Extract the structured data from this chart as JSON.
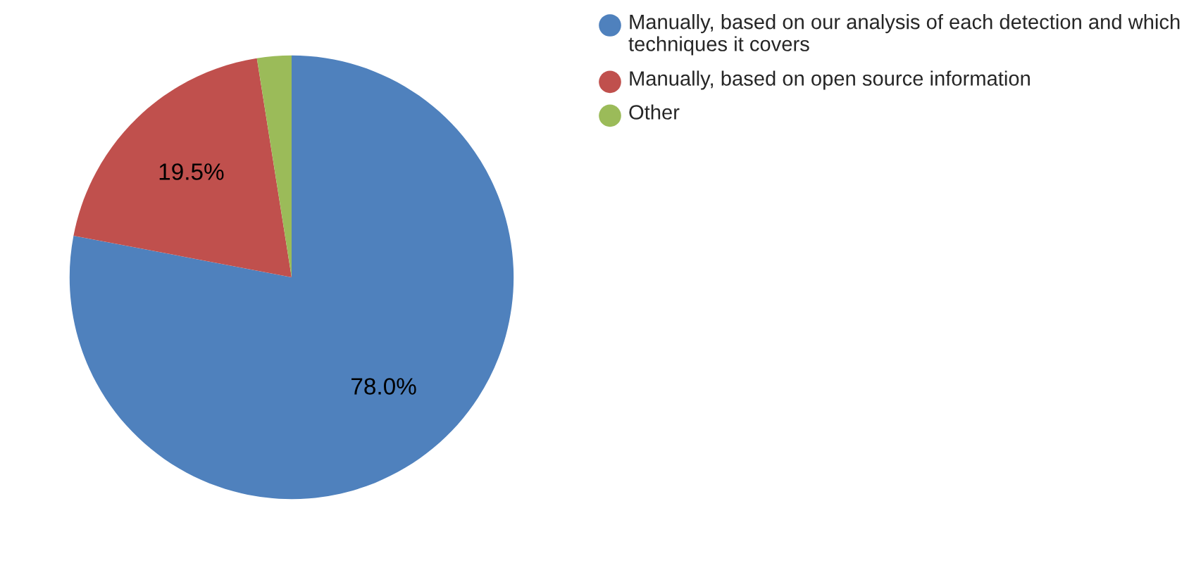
{
  "chart_data": {
    "type": "pie",
    "categories": [
      "Manually, based on our analysis of each detection and which techniques it covers",
      "Manually, based on open source information",
      "Other"
    ],
    "values": [
      78.0,
      19.5,
      2.5
    ],
    "colors": [
      "#4f81bd",
      "#c0504d",
      "#9bbb59"
    ],
    "value_labels": [
      "78.0%",
      "19.5%",
      null
    ],
    "legend": "top right"
  }
}
